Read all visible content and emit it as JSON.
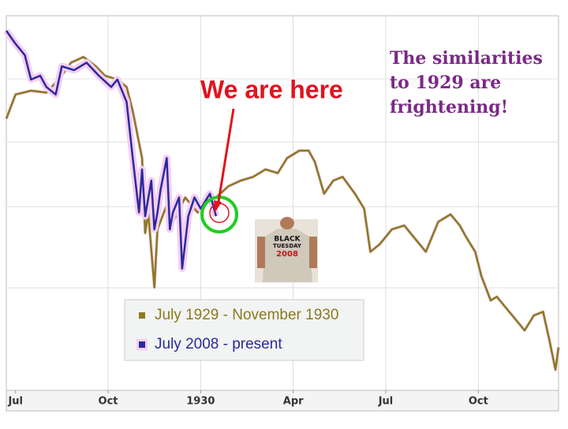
{
  "chart_data": {
    "type": "line",
    "annotations": [
      "We are here",
      "The similarities",
      "to 1929 are",
      "frightening!"
    ],
    "shirt_text": [
      "BLACK",
      "TUESDAY",
      "2008"
    ],
    "xlim": [
      -0.3,
      17.6
    ],
    "ylim": [
      0,
      100
    ],
    "xticks": [
      {
        "value": 0,
        "label": "Jul"
      },
      {
        "value": 3,
        "label": "Oct"
      },
      {
        "value": 6,
        "label": "1930"
      },
      {
        "value": 9,
        "label": "Apr"
      },
      {
        "value": 12,
        "label": "Jul"
      },
      {
        "value": 15,
        "label": "Oct"
      }
    ],
    "grid": true,
    "series": [
      {
        "name": "July 1929 - November 1930",
        "color": "#8b7a1e",
        "x": [
          -0.3,
          0,
          0.5,
          1.0,
          1.4,
          1.8,
          2.2,
          2.6,
          2.9,
          3.3,
          3.6,
          3.8,
          4.1,
          4.2,
          4.3,
          4.5,
          4.6,
          4.9,
          5.1,
          5.5,
          5.9,
          6.2,
          6.5,
          6.9,
          7.3,
          7.7,
          8.1,
          8.5,
          8.8,
          9.2,
          9.5,
          9.7,
          10.0,
          10.3,
          10.6,
          11.0,
          11.3,
          11.5,
          11.8,
          12.2,
          12.6,
          12.9,
          13.3,
          13.7,
          14.1,
          14.4,
          14.6,
          14.9,
          15.1,
          15.4,
          15.6,
          15.9,
          16.3,
          16.5,
          16.8,
          17.1,
          17.3,
          17.5,
          17.6
        ],
        "values": [
          72.5,
          79,
          80,
          79.5,
          83,
          87.5,
          89,
          86.5,
          84,
          83,
          81,
          74.5,
          62,
          42,
          47.5,
          27.5,
          43,
          49.5,
          45,
          51.5,
          47.5,
          50.5,
          51.5,
          54.5,
          56,
          57,
          59,
          58,
          62,
          64,
          64,
          61,
          52.5,
          56,
          57,
          52.5,
          48.5,
          37,
          39,
          43,
          44,
          41,
          37,
          45,
          47,
          44,
          41,
          37,
          30.5,
          24,
          25,
          22,
          18,
          16,
          20,
          21,
          13.5,
          5.5,
          11.5
        ]
      },
      {
        "name": "July 2008 - present",
        "color": "#2a2a9a",
        "x": [
          -0.3,
          0,
          0.3,
          0.5,
          0.8,
          1.0,
          1.3,
          1.5,
          1.9,
          2.3,
          2.7,
          3.1,
          3.3,
          3.6,
          3.8,
          4.0,
          4.1,
          4.2,
          4.4,
          4.5,
          4.6,
          4.7,
          4.9,
          5.0,
          5.1,
          5.3,
          5.4,
          5.6,
          5.8,
          6.0,
          6.3,
          6.5
        ],
        "values": [
          96,
          92.5,
          89.5,
          83,
          84,
          81,
          79,
          86.5,
          85.5,
          87.5,
          84,
          81,
          83,
          77,
          62,
          47.5,
          59,
          46.5,
          56,
          43,
          47.5,
          53.5,
          62,
          43,
          47.5,
          51.5,
          32.5,
          46.5,
          51.5,
          48.5,
          52.5,
          46.5
        ]
      }
    ]
  }
}
